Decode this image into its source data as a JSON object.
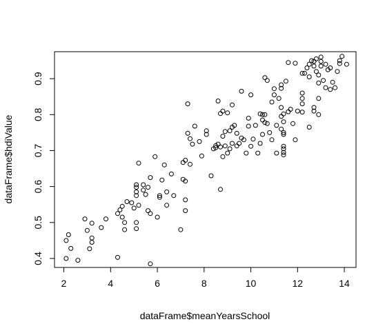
{
  "chart_data": {
    "type": "scatter",
    "xlabel": "dataFrame$meanYearsSchool",
    "ylabel": "dataFrame$hdiValue",
    "xlim": [
      1.6,
      14.5
    ],
    "ylim": [
      0.375,
      0.975
    ],
    "x_ticks": [
      "2",
      "4",
      "6",
      "8",
      "10",
      "12",
      "14"
    ],
    "y_ticks": [
      "0.4",
      "0.5",
      "0.6",
      "0.7",
      "0.8",
      "0.9"
    ],
    "x_tick_values": [
      2,
      4,
      6,
      8,
      10,
      12,
      14
    ],
    "y_tick_values": [
      0.4,
      0.5,
      0.6,
      0.7,
      0.8,
      0.9
    ],
    "marker": "open-circle",
    "marker_color": "#000000",
    "grid": false,
    "points": [
      [
        2.1,
        0.4
      ],
      [
        2.1,
        0.45
      ],
      [
        2.2,
        0.466
      ],
      [
        2.3,
        0.428
      ],
      [
        2.6,
        0.395
      ],
      [
        2.9,
        0.51
      ],
      [
        3.0,
        0.478
      ],
      [
        3.1,
        0.427
      ],
      [
        3.2,
        0.445
      ],
      [
        3.2,
        0.457
      ],
      [
        3.2,
        0.498
      ],
      [
        3.6,
        0.486
      ],
      [
        3.8,
        0.51
      ],
      [
        4.3,
        0.403
      ],
      [
        4.3,
        0.525
      ],
      [
        4.4,
        0.535
      ],
      [
        4.5,
        0.545
      ],
      [
        4.5,
        0.515
      ],
      [
        4.6,
        0.5
      ],
      [
        4.6,
        0.48
      ],
      [
        4.7,
        0.558
      ],
      [
        4.9,
        0.555
      ],
      [
        5.0,
        0.54
      ],
      [
        5.1,
        0.5
      ],
      [
        5.1,
        0.483
      ],
      [
        5.1,
        0.598
      ],
      [
        5.1,
        0.585
      ],
      [
        5.1,
        0.575
      ],
      [
        5.1,
        0.605
      ],
      [
        5.2,
        0.665
      ],
      [
        5.2,
        0.548
      ],
      [
        5.4,
        0.605
      ],
      [
        5.4,
        0.59
      ],
      [
        5.5,
        0.578
      ],
      [
        5.6,
        0.598
      ],
      [
        5.6,
        0.533
      ],
      [
        5.7,
        0.525
      ],
      [
        5.7,
        0.385
      ],
      [
        5.7,
        0.625
      ],
      [
        5.9,
        0.683
      ],
      [
        6.0,
        0.515
      ],
      [
        6.1,
        0.575
      ],
      [
        6.1,
        0.57
      ],
      [
        6.2,
        0.618
      ],
      [
        6.3,
        0.66
      ],
      [
        6.4,
        0.585
      ],
      [
        6.4,
        0.548
      ],
      [
        6.6,
        0.635
      ],
      [
        6.7,
        0.575
      ],
      [
        7.0,
        0.48
      ],
      [
        7.1,
        0.62
      ],
      [
        7.1,
        0.667
      ],
      [
        7.2,
        0.615
      ],
      [
        7.2,
        0.563
      ],
      [
        7.2,
        0.533
      ],
      [
        7.2,
        0.673
      ],
      [
        7.3,
        0.83
      ],
      [
        7.3,
        0.748
      ],
      [
        7.4,
        0.733
      ],
      [
        7.4,
        0.662
      ],
      [
        7.5,
        0.718
      ],
      [
        7.6,
        0.768
      ],
      [
        7.8,
        0.725
      ],
      [
        7.9,
        0.685
      ],
      [
        8.1,
        0.755
      ],
      [
        8.1,
        0.745
      ],
      [
        8.3,
        0.63
      ],
      [
        8.4,
        0.705
      ],
      [
        8.5,
        0.714
      ],
      [
        8.5,
        0.708
      ],
      [
        8.6,
        0.718
      ],
      [
        8.6,
        0.838
      ],
      [
        8.7,
        0.71
      ],
      [
        8.7,
        0.592
      ],
      [
        8.7,
        0.803
      ],
      [
        8.8,
        0.81
      ],
      [
        8.8,
        0.74
      ],
      [
        8.8,
        0.683
      ],
      [
        8.9,
        0.753
      ],
      [
        8.9,
        0.713
      ],
      [
        9.0,
        0.693
      ],
      [
        9.0,
        0.805
      ],
      [
        9.1,
        0.755
      ],
      [
        9.1,
        0.705
      ],
      [
        9.2,
        0.72
      ],
      [
        9.2,
        0.765
      ],
      [
        9.2,
        0.827
      ],
      [
        9.3,
        0.77
      ],
      [
        9.4,
        0.748
      ],
      [
        9.4,
        0.713
      ],
      [
        9.5,
        0.72
      ],
      [
        9.6,
        0.865
      ],
      [
        9.6,
        0.735
      ],
      [
        9.7,
        0.73
      ],
      [
        9.8,
        0.693
      ],
      [
        9.9,
        0.79
      ],
      [
        9.9,
        0.768
      ],
      [
        10.0,
        0.855
      ],
      [
        10.0,
        0.712
      ],
      [
        10.1,
        0.732
      ],
      [
        10.2,
        0.77
      ],
      [
        10.3,
        0.693
      ],
      [
        10.4,
        0.802
      ],
      [
        10.4,
        0.72
      ],
      [
        10.5,
        0.785
      ],
      [
        10.5,
        0.8
      ],
      [
        10.5,
        0.745
      ],
      [
        10.6,
        0.778
      ],
      [
        10.6,
        0.8
      ],
      [
        10.6,
        0.903
      ],
      [
        10.7,
        0.895
      ],
      [
        10.7,
        0.775
      ],
      [
        10.8,
        0.75
      ],
      [
        10.9,
        0.835
      ],
      [
        10.9,
        0.73
      ],
      [
        11.0,
        0.872
      ],
      [
        11.0,
        0.855
      ],
      [
        11.1,
        0.77
      ],
      [
        11.1,
        0.693
      ],
      [
        11.2,
        0.845
      ],
      [
        11.3,
        0.883
      ],
      [
        11.3,
        0.873
      ],
      [
        11.3,
        0.82
      ],
      [
        11.3,
        0.795
      ],
      [
        11.3,
        0.76
      ],
      [
        11.4,
        0.802
      ],
      [
        11.4,
        0.78
      ],
      [
        11.4,
        0.75
      ],
      [
        11.4,
        0.745
      ],
      [
        11.4,
        0.712
      ],
      [
        11.4,
        0.705
      ],
      [
        11.4,
        0.695
      ],
      [
        11.4,
        0.688
      ],
      [
        11.5,
        0.893
      ],
      [
        11.6,
        0.945
      ],
      [
        11.6,
        0.808
      ],
      [
        11.7,
        0.815
      ],
      [
        11.8,
        0.775
      ],
      [
        11.9,
        0.943
      ],
      [
        11.9,
        0.73
      ],
      [
        12.0,
        0.81
      ],
      [
        12.2,
        0.915
      ],
      [
        12.2,
        0.86
      ],
      [
        12.2,
        0.845
      ],
      [
        12.2,
        0.83
      ],
      [
        12.2,
        0.807
      ],
      [
        12.3,
        0.915
      ],
      [
        12.4,
        0.93
      ],
      [
        12.5,
        0.94
      ],
      [
        12.5,
        0.905
      ],
      [
        12.5,
        0.765
      ],
      [
        12.6,
        0.95
      ],
      [
        12.7,
        0.948
      ],
      [
        12.7,
        0.935
      ],
      [
        12.7,
        0.81
      ],
      [
        12.7,
        0.82
      ],
      [
        12.8,
        0.92
      ],
      [
        12.8,
        0.955
      ],
      [
        12.9,
        0.91
      ],
      [
        12.9,
        0.888
      ],
      [
        12.9,
        0.845
      ],
      [
        12.9,
        0.8
      ],
      [
        13.0,
        0.935
      ],
      [
        13.0,
        0.96
      ],
      [
        13.0,
        0.948
      ],
      [
        13.1,
        0.895
      ],
      [
        13.2,
        0.94
      ],
      [
        13.2,
        0.875
      ],
      [
        13.3,
        0.925
      ],
      [
        13.4,
        0.93
      ],
      [
        13.4,
        0.87
      ],
      [
        13.5,
        0.89
      ],
      [
        13.6,
        0.875
      ],
      [
        13.7,
        0.92
      ],
      [
        13.8,
        0.95
      ],
      [
        13.8,
        0.942
      ],
      [
        13.9,
        0.962
      ],
      [
        14.1,
        0.94
      ]
    ]
  }
}
